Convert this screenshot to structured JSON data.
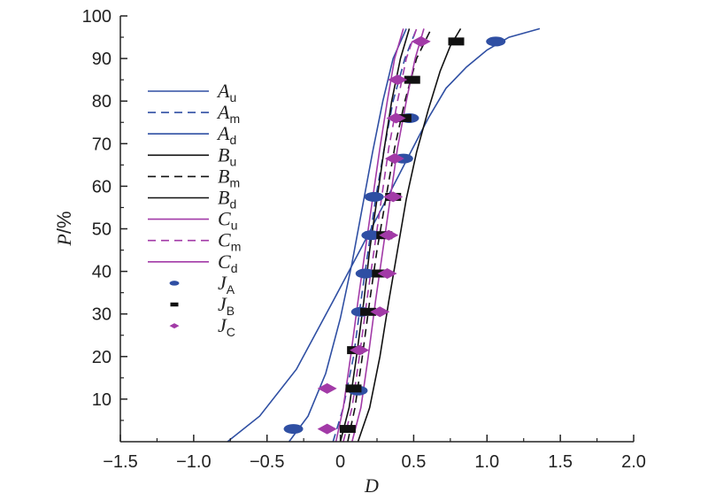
{
  "chart_data": {
    "type": "line",
    "title": "",
    "xlabel": "D",
    "ylabel": {
      "main": "P",
      "unit": "/%"
    },
    "xlim": [
      -1.5,
      2.0
    ],
    "ylim": [
      0,
      100
    ],
    "xticks": [
      "−1.5",
      "−1.0",
      "−0.5",
      "0",
      "0.5",
      "1.0",
      "1.5",
      "2.0"
    ],
    "yticks": [
      "10",
      "20",
      "30",
      "40",
      "50",
      "60",
      "70",
      "80",
      "90",
      "100"
    ],
    "grid": false,
    "legend_position": "left",
    "colors": {
      "A": "#2f4fa3",
      "B": "#111111",
      "C": "#a23aa7"
    },
    "series": [
      {
        "name": "A",
        "sub": "u",
        "kind": "line",
        "style": "solid",
        "color": "#2f4fa3",
        "x": [
          -0.77,
          -0.55,
          -0.3,
          -0.05,
          0.15,
          0.33,
          0.48,
          0.6,
          0.72,
          0.86,
          1.0,
          1.15,
          1.36
        ],
        "y": [
          0,
          6,
          17,
          33,
          46,
          58,
          68,
          76,
          83,
          88,
          92,
          95,
          97
        ]
      },
      {
        "name": "A",
        "sub": "m",
        "kind": "line",
        "style": "dashed",
        "color": "#2f4fa3",
        "x": [
          -0.05,
          0.02,
          0.09,
          0.14,
          0.19,
          0.24,
          0.3,
          0.36,
          0.44,
          0.52
        ],
        "y": [
          0,
          8,
          20,
          33,
          45,
          57,
          69,
          80,
          90,
          97
        ]
      },
      {
        "name": "A",
        "sub": "d",
        "kind": "line",
        "style": "solid",
        "color": "#2f4fa3",
        "x": [
          -0.35,
          -0.22,
          -0.1,
          0.0,
          0.08,
          0.15,
          0.22,
          0.29,
          0.36,
          0.45
        ],
        "y": [
          0,
          6,
          16,
          29,
          42,
          55,
          68,
          80,
          90,
          97
        ]
      },
      {
        "name": "B",
        "sub": "u",
        "kind": "line",
        "style": "solid",
        "color": "#111111",
        "x": [
          0.12,
          0.2,
          0.27,
          0.33,
          0.39,
          0.45,
          0.52,
          0.6,
          0.68,
          0.75,
          0.82
        ],
        "y": [
          0,
          8,
          20,
          33,
          45,
          57,
          68,
          78,
          87,
          93,
          97
        ]
      },
      {
        "name": "B",
        "sub": "m",
        "kind": "line",
        "style": "dashed",
        "color": "#111111",
        "x": [
          0.05,
          0.1,
          0.15,
          0.2,
          0.25,
          0.31,
          0.37,
          0.44,
          0.52,
          0.62
        ],
        "y": [
          0,
          8,
          20,
          33,
          45,
          57,
          69,
          80,
          90,
          97
        ]
      },
      {
        "name": "B",
        "sub": "d",
        "kind": "line",
        "style": "solid",
        "color": "#111111",
        "x": [
          0.0,
          0.06,
          0.11,
          0.16,
          0.2,
          0.25,
          0.3,
          0.35,
          0.41,
          0.47
        ],
        "y": [
          0,
          8,
          20,
          33,
          45,
          57,
          69,
          80,
          90,
          97
        ]
      },
      {
        "name": "C",
        "sub": "u",
        "kind": "line",
        "style": "solid",
        "color": "#a23aa7",
        "x": [
          0.08,
          0.14,
          0.19,
          0.24,
          0.29,
          0.34,
          0.39,
          0.45,
          0.51,
          0.57
        ],
        "y": [
          0,
          8,
          20,
          33,
          45,
          57,
          69,
          80,
          90,
          97
        ]
      },
      {
        "name": "C",
        "sub": "m",
        "kind": "line",
        "style": "dashed",
        "color": "#a23aa7",
        "x": [
          0.02,
          0.08,
          0.13,
          0.18,
          0.23,
          0.28,
          0.33,
          0.39,
          0.45,
          0.52
        ],
        "y": [
          0,
          8,
          20,
          33,
          45,
          57,
          69,
          80,
          90,
          97
        ]
      },
      {
        "name": "C",
        "sub": "d",
        "kind": "line",
        "style": "solid",
        "color": "#a23aa7",
        "x": [
          -0.03,
          0.02,
          0.07,
          0.12,
          0.17,
          0.22,
          0.27,
          0.32,
          0.37,
          0.43
        ],
        "y": [
          0,
          8,
          20,
          33,
          45,
          57,
          69,
          80,
          90,
          97
        ]
      },
      {
        "name": "J",
        "sub": "A",
        "kind": "points",
        "marker": "ellipse",
        "color": "#2f4fa3",
        "x": [
          -0.32,
          0.12,
          0.14,
          0.17,
          0.21,
          0.23,
          0.43,
          0.47,
          1.06
        ],
        "y": [
          3,
          12,
          30.5,
          39.5,
          48.5,
          57.5,
          66.5,
          76,
          94
        ]
      },
      {
        "name": "J",
        "sub": "B",
        "kind": "points",
        "marker": "square",
        "color": "#111111",
        "x": [
          0.05,
          0.09,
          0.1,
          0.19,
          0.27,
          0.3,
          0.36,
          0.43,
          0.49,
          0.79
        ],
        "y": [
          3,
          12.5,
          21.5,
          30.5,
          39.5,
          48.5,
          57.5,
          76,
          85,
          94
        ]
      },
      {
        "name": "J",
        "sub": "C",
        "kind": "points",
        "marker": "diamond",
        "color": "#a23aa7",
        "x": [
          -0.09,
          -0.09,
          0.13,
          0.27,
          0.32,
          0.33,
          0.36,
          0.37,
          0.38,
          0.39,
          0.55
        ],
        "y": [
          3,
          12.5,
          21.5,
          30.5,
          39.5,
          48.5,
          57.5,
          66.5,
          76,
          85,
          94
        ]
      }
    ]
  }
}
